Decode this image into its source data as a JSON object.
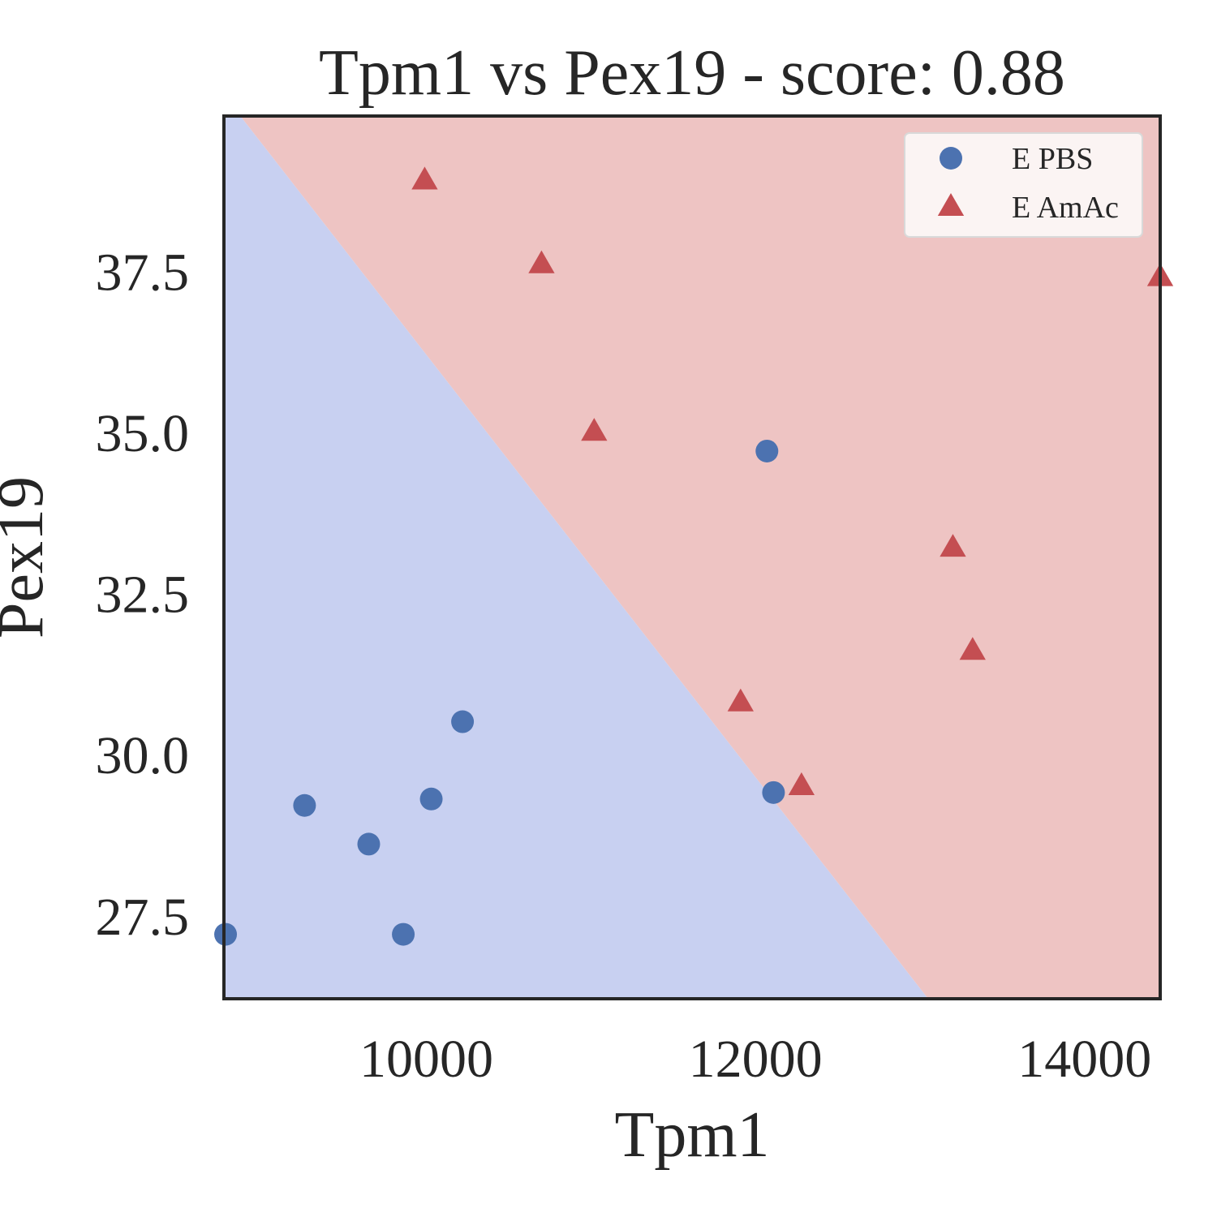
{
  "chart_data": {
    "type": "scatter",
    "title": "Tpm1 vs Pex19 - score: 0.88",
    "xlabel": "Tpm1",
    "ylabel": "Pex19",
    "xlim": [
      8770,
      14460
    ],
    "ylim": [
      26.2,
      39.9
    ],
    "xticks": [
      10000,
      12000,
      14000
    ],
    "xtick_labels": [
      "10000",
      "12000",
      "14000"
    ],
    "yticks": [
      27.5,
      30.0,
      32.5,
      35.0,
      37.5
    ],
    "ytick_labels": [
      "27.5",
      "30.0",
      "32.5",
      "35.0",
      "37.5"
    ],
    "grid": false,
    "legend_position": "top-right",
    "decision_boundary": {
      "points": [
        [
          8870,
          39.9
        ],
        [
          13050,
          26.2
        ]
      ],
      "region_colors": {
        "lower_left": "#c8d0f1",
        "upper_right": "#eec4c3"
      }
    },
    "series": [
      {
        "name": "E PBS",
        "marker": "circle",
        "color": "#4c72b0",
        "points": [
          [
            8780,
            27.2
          ],
          [
            9260,
            29.2
          ],
          [
            9650,
            28.6
          ],
          [
            9860,
            27.2
          ],
          [
            10030,
            29.3
          ],
          [
            10220,
            30.5
          ],
          [
            12070,
            34.7
          ],
          [
            12110,
            29.4
          ]
        ]
      },
      {
        "name": "E AmAc",
        "marker": "triangle",
        "color": "#c44e52",
        "points": [
          [
            9990,
            38.9
          ],
          [
            10700,
            37.6
          ],
          [
            11020,
            35.0
          ],
          [
            11910,
            30.8
          ],
          [
            12280,
            29.5
          ],
          [
            13200,
            33.2
          ],
          [
            13320,
            31.6
          ],
          [
            14460,
            37.4
          ]
        ]
      }
    ]
  }
}
